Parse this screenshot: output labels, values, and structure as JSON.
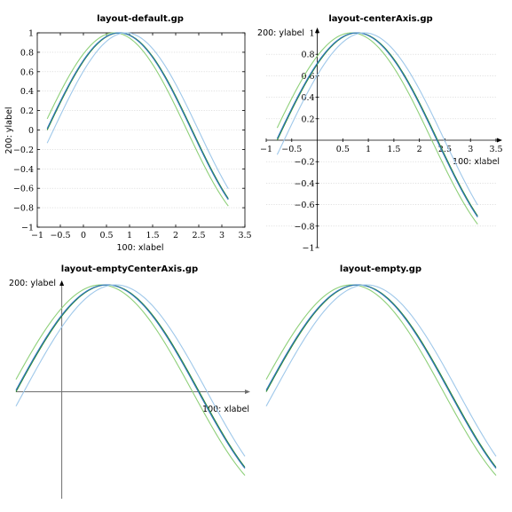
{
  "chart_data": [
    {
      "type": "line",
      "layout": "default",
      "title": "layout-default.gp",
      "xlabel": "100: xlabel",
      "ylabel": "200: ylabel",
      "xlim": [
        -1,
        3.5
      ],
      "ylim": [
        -1,
        1
      ],
      "xticks": [
        -1,
        -0.5,
        0,
        0.5,
        1,
        1.5,
        2,
        2.5,
        3,
        3.5
      ],
      "xtick_labels": [
        "−1",
        "−0.5",
        "0",
        "0.5",
        "1",
        "1.5",
        "2",
        "2.5",
        "3",
        "3.5"
      ],
      "yticks": [
        -1,
        -0.8,
        -0.6,
        -0.4,
        -0.2,
        0,
        0.2,
        0.4,
        0.6,
        0.8,
        1
      ],
      "ytick_labels": [
        "−1",
        "−0.8",
        "−0.6",
        "−0.4",
        "−0.2",
        "0",
        "0.2",
        "0.4",
        "0.6",
        "0.8",
        "1"
      ],
      "grid": "horizontal",
      "x_domain": [
        -0.785,
        3.14
      ],
      "series": [
        {
          "function": "sin(x + 0.785)",
          "color": "#2e8b2e"
        },
        {
          "function": "sin(x + 0.90)",
          "color": "#8fd07a"
        },
        {
          "function": "sin(x + 0.80)",
          "color": "#2f74c0"
        },
        {
          "function": "sin(x + 0.65)",
          "color": "#9fc8ea"
        }
      ]
    },
    {
      "type": "line",
      "layout": "centerAxis",
      "title": "layout-centerAxis.gp",
      "xlabel": "100: xlabel",
      "ylabel": "200: ylabel",
      "xlim": [
        -1,
        3.5
      ],
      "ylim": [
        -1,
        1
      ],
      "xticks": [
        -1,
        -0.5,
        0.5,
        1,
        1.5,
        2,
        2.5,
        3,
        3.5
      ],
      "xtick_labels": [
        "−1",
        "−0.5",
        "0.5",
        "1",
        "1.5",
        "2",
        "2.5",
        "3",
        "3.5"
      ],
      "yticks": [
        -1,
        -0.8,
        -0.6,
        -0.4,
        -0.2,
        0.2,
        0.4,
        0.6,
        0.8,
        1
      ],
      "ytick_labels": [
        "−1",
        "−0.8",
        "−0.6",
        "−0.4",
        "−0.2",
        "0.2",
        "0.4",
        "0.6",
        "0.8",
        "1"
      ],
      "grid": "horizontal",
      "x_domain": [
        -0.785,
        3.14
      ],
      "series": [
        {
          "function": "sin(x + 0.785)",
          "color": "#2e8b2e"
        },
        {
          "function": "sin(x + 0.90)",
          "color": "#8fd07a"
        },
        {
          "function": "sin(x + 0.80)",
          "color": "#2f74c0"
        },
        {
          "function": "sin(x + 0.65)",
          "color": "#9fc8ea"
        }
      ]
    },
    {
      "type": "line",
      "layout": "emptyCenterAxis",
      "title": "layout-emptyCenterAxis.gp",
      "xlabel": "100: xlabel",
      "ylabel": "200: ylabel",
      "xlim": [
        -0.785,
        3.14
      ],
      "ylim": [
        -1,
        1
      ],
      "grid": "none",
      "x_domain": [
        -0.785,
        3.14
      ],
      "series": [
        {
          "function": "sin(x + 0.785)",
          "color": "#2e8b2e"
        },
        {
          "function": "sin(x + 0.90)",
          "color": "#8fd07a"
        },
        {
          "function": "sin(x + 0.80)",
          "color": "#2f74c0"
        },
        {
          "function": "sin(x + 0.65)",
          "color": "#9fc8ea"
        }
      ]
    },
    {
      "type": "line",
      "layout": "empty",
      "title": "layout-empty.gp",
      "xlim": [
        -0.785,
        3.14
      ],
      "ylim": [
        -1,
        1
      ],
      "grid": "none",
      "x_domain": [
        -0.785,
        3.14
      ],
      "series": [
        {
          "function": "sin(x + 0.785)",
          "color": "#2e8b2e"
        },
        {
          "function": "sin(x + 0.90)",
          "color": "#8fd07a"
        },
        {
          "function": "sin(x + 0.80)",
          "color": "#2f74c0"
        },
        {
          "function": "sin(x + 0.65)",
          "color": "#9fc8ea"
        }
      ]
    }
  ]
}
